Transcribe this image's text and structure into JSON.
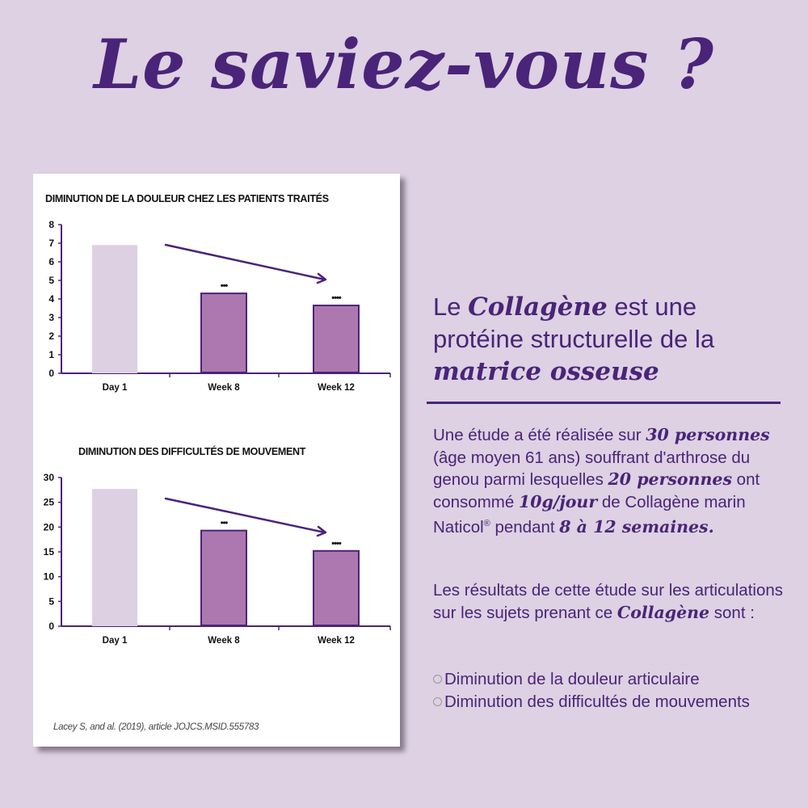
{
  "header": {
    "title": "Le saviez-vous ?"
  },
  "colors": {
    "primary": "#4a2478",
    "bar_baseline": "#dcd0e2",
    "bar_treated": "#ad77b0",
    "background": "#ddd1e3"
  },
  "chart_data": [
    {
      "type": "bar",
      "title": "DIMINUTION DE LA DOULEUR CHEZ LES PATIENTS TRAITÉS",
      "categories": [
        "Day 1",
        "Week 8",
        "Week 12"
      ],
      "values": [
        6.9,
        4.3,
        3.65
      ],
      "significance": [
        "",
        "***",
        "****"
      ],
      "yticks": [
        "0",
        "1",
        "2",
        "3",
        "4",
        "5",
        "6",
        "7",
        "8"
      ],
      "ylim": [
        0,
        8
      ],
      "xlabel": "",
      "ylabel": "",
      "grid": false,
      "annotation": "downward trend arrow from Day 1 to Week 12"
    },
    {
      "type": "bar",
      "title": "DIMINUTION DES DIFFICULTÉS DE MOUVEMENT",
      "categories": [
        "Day 1",
        "Week 8",
        "Week 12"
      ],
      "values": [
        27.7,
        19.3,
        15.2
      ],
      "significance": [
        "",
        "***",
        "****"
      ],
      "yticks": [
        "0",
        "5",
        "10",
        "15",
        "20",
        "25",
        "30"
      ],
      "ylim": [
        0,
        30
      ],
      "xlabel": "",
      "ylabel": "",
      "grid": false,
      "annotation": "downward trend arrow from Day 1 to Week 12"
    }
  ],
  "card": {
    "citation": "Lacey S, and al. (2019), article JOJCS.MSID.555783"
  },
  "right": {
    "headline": {
      "t1": "Le ",
      "e1": "Collagène",
      "t2": " est une protéine structurelle de la ",
      "e2": "matrice osseuse"
    },
    "paragraph1": {
      "t1": "Une étude a été réalisée sur ",
      "e1": "30 personnes",
      "t2": " (âge moyen 61 ans) souffrant d'arthrose du genou parmi lesquelles ",
      "e2": "20 personnes",
      "t3": " ont consommé ",
      "e3": "10g/jour",
      "t4": " de Collagène marin Naticol",
      "reg": "®",
      "t5": " pendant ",
      "e4": "8 à 12 semaines."
    },
    "paragraph2": {
      "t1": "Les résultats de cette étude sur les articulations sur les sujets prenant ce ",
      "e1": "Collagène",
      "t2": " sont :"
    },
    "results": [
      "Diminution de la douleur articulaire",
      "Diminution des difficultés de mouvements"
    ]
  }
}
